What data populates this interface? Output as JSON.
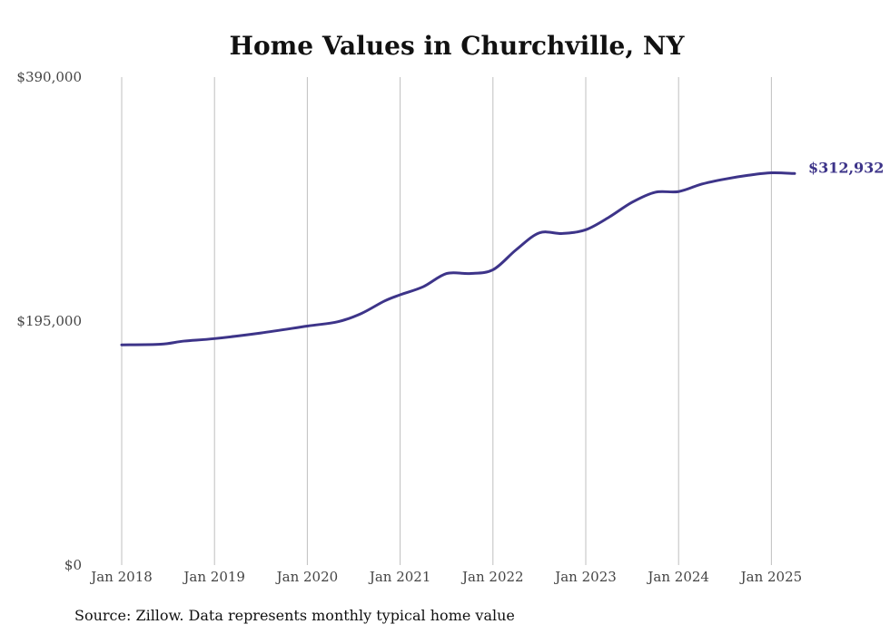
{
  "chart_data": {
    "type": "line",
    "title": "Home Values in Churchville, NY",
    "xlabel": "",
    "ylabel": "",
    "ylim": [
      0,
      390000
    ],
    "yticks": [
      {
        "value": 0,
        "label": "$0"
      },
      {
        "value": 195000,
        "label": "$195,000"
      },
      {
        "value": 390000,
        "label": "$390,000"
      }
    ],
    "xticks": [
      {
        "value": 2018,
        "label": "Jan 2018"
      },
      {
        "value": 2019,
        "label": "Jan 2019"
      },
      {
        "value": 2020,
        "label": "Jan 2020"
      },
      {
        "value": 2021,
        "label": "Jan 2021"
      },
      {
        "value": 2022,
        "label": "Jan 2022"
      },
      {
        "value": 2023,
        "label": "Jan 2023"
      },
      {
        "value": 2024,
        "label": "Jan 2024"
      },
      {
        "value": 2025,
        "label": "Jan 2025"
      }
    ],
    "grid": "vertical",
    "line_color": "#3d3489",
    "end_label": "$312,932",
    "series": [
      {
        "points": [
          [
            2018.0,
            176000
          ],
          [
            2018.42,
            176500
          ],
          [
            2018.67,
            179000
          ],
          [
            2019.0,
            181000
          ],
          [
            2019.5,
            185500
          ],
          [
            2020.0,
            191000
          ],
          [
            2020.33,
            194500
          ],
          [
            2020.58,
            201000
          ],
          [
            2020.83,
            211000
          ],
          [
            2021.0,
            216000
          ],
          [
            2021.25,
            222500
          ],
          [
            2021.5,
            233000
          ],
          [
            2021.75,
            233000
          ],
          [
            2022.0,
            236000
          ],
          [
            2022.25,
            252000
          ],
          [
            2022.5,
            265500
          ],
          [
            2022.75,
            265000
          ],
          [
            2023.0,
            268000
          ],
          [
            2023.25,
            278000
          ],
          [
            2023.5,
            290000
          ],
          [
            2023.75,
            298000
          ],
          [
            2024.0,
            298500
          ],
          [
            2024.25,
            304500
          ],
          [
            2024.5,
            308500
          ],
          [
            2024.75,
            311500
          ],
          [
            2025.0,
            313500
          ],
          [
            2025.25,
            312932
          ]
        ]
      }
    ]
  },
  "source_text": "Source: Zillow. Data represents monthly typical home value"
}
